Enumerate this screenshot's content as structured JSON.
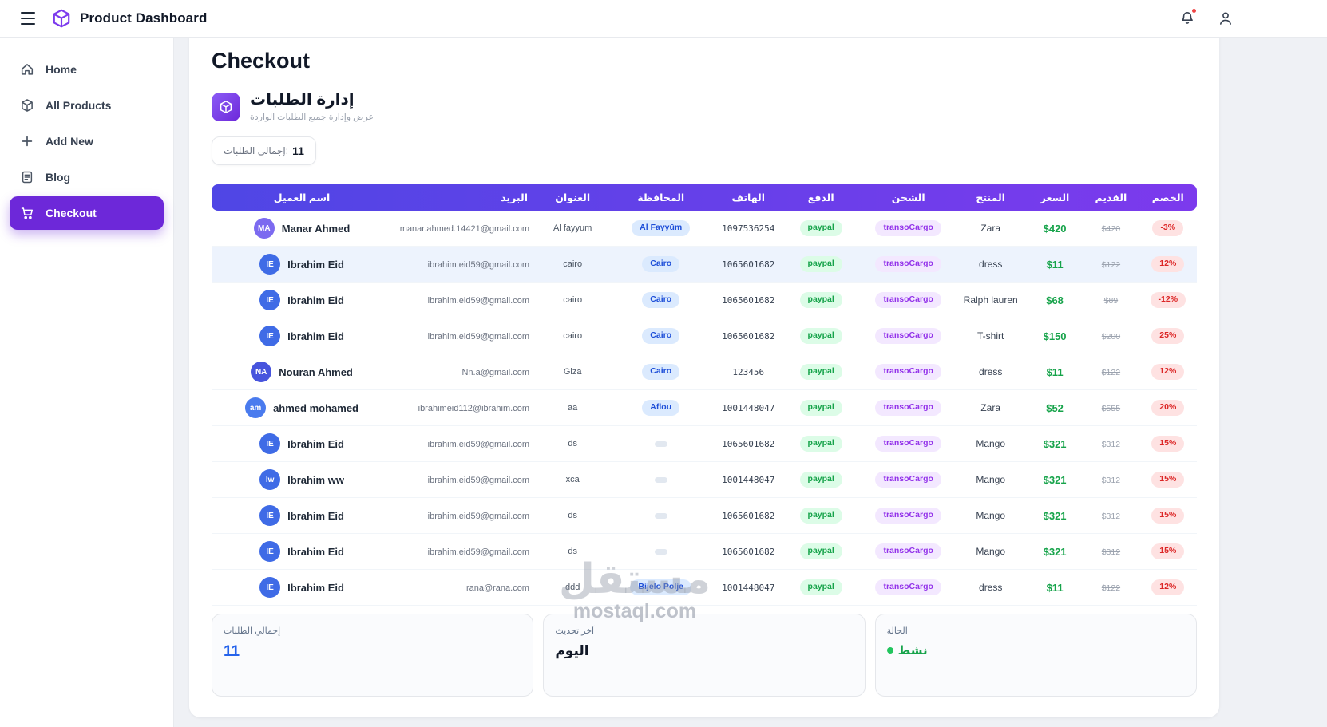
{
  "app": {
    "title": "Product Dashboard"
  },
  "sidebar": {
    "items": [
      {
        "label": "Home",
        "icon": "home-icon",
        "active": false
      },
      {
        "label": "All Products",
        "icon": "box-icon",
        "active": false
      },
      {
        "label": "Add New",
        "icon": "plus-icon",
        "active": false
      },
      {
        "label": "Blog",
        "icon": "blog-icon",
        "active": false
      },
      {
        "label": "Checkout",
        "icon": "cart-icon",
        "active": true
      }
    ]
  },
  "main": {
    "page_title": "Checkout",
    "orders_header": {
      "title": "إدارة الطلبات",
      "subtitle": "عرض وإدارة جميع الطلبات الواردة"
    },
    "total_pill": {
      "label": "إجمالي الطلبات:",
      "value": "11"
    },
    "table": {
      "columns": [
        "اسم العميل",
        "البريد",
        "العنوان",
        "المحافظة",
        "الهاتف",
        "الدفع",
        "الشحن",
        "المنتج",
        "السعر",
        "القديم",
        "الخصم"
      ],
      "rows": [
        {
          "initials": "MA",
          "avatar_color": "#7c6af0",
          "name": "Manar Ahmed",
          "email": "manar.ahmed.14421@gmail.com",
          "address": "Al fayyum",
          "governorate": "Al Fayyūm",
          "phone": "1097536254",
          "payment": "paypal",
          "shipping": "transoCargo",
          "product": "Zara",
          "price": "$420",
          "old_price": "$420",
          "discount": "-3%",
          "highlight": false
        },
        {
          "initials": "IE",
          "avatar_color": "#3f6be6",
          "name": "Ibrahim Eid",
          "email": "ibrahim.eid59@gmail.com",
          "address": "cairo",
          "governorate": "Cairo",
          "phone": "1065601682",
          "payment": "paypal",
          "shipping": "transoCargo",
          "product": "dress",
          "price": "$11",
          "old_price": "$122",
          "discount": "12%",
          "highlight": true
        },
        {
          "initials": "IE",
          "avatar_color": "#3f6be6",
          "name": "Ibrahim Eid",
          "email": "ibrahim.eid59@gmail.com",
          "address": "cairo",
          "governorate": "Cairo",
          "phone": "1065601682",
          "payment": "paypal",
          "shipping": "transoCargo",
          "product": "Ralph lauren",
          "price": "$68",
          "old_price": "$89",
          "discount": "-12%",
          "highlight": false
        },
        {
          "initials": "IE",
          "avatar_color": "#3f6be6",
          "name": "Ibrahim Eid",
          "email": "ibrahim.eid59@gmail.com",
          "address": "cairo",
          "governorate": "Cairo",
          "phone": "1065601682",
          "payment": "paypal",
          "shipping": "transoCargo",
          "product": "T-shirt",
          "price": "$150",
          "old_price": "$200",
          "discount": "25%",
          "highlight": false
        },
        {
          "initials": "NA",
          "avatar_color": "#4754dd",
          "name": "Nouran Ahmed",
          "email": "Nn.a@gmail.com",
          "address": "Giza",
          "governorate": "Cairo",
          "phone": "123456",
          "payment": "paypal",
          "shipping": "transoCargo",
          "product": "dress",
          "price": "$11",
          "old_price": "$122",
          "discount": "12%",
          "highlight": false
        },
        {
          "initials": "am",
          "avatar_color": "#4a7bee",
          "name": "ahmed mohamed",
          "email": "ibrahimeid112@ibrahim.com",
          "address": "aa",
          "governorate": "Aflou",
          "phone": "1001448047",
          "payment": "paypal",
          "shipping": "transoCargo",
          "product": "Zara",
          "price": "$52",
          "old_price": "$555",
          "discount": "20%",
          "highlight": false
        },
        {
          "initials": "IE",
          "avatar_color": "#3f6be6",
          "name": "Ibrahim Eid",
          "email": "ibrahim.eid59@gmail.com",
          "address": "ds",
          "governorate": "",
          "phone": "1065601682",
          "payment": "paypal",
          "shipping": "transoCargo",
          "product": "Mango",
          "price": "$321",
          "old_price": "$312",
          "discount": "15%",
          "highlight": false
        },
        {
          "initials": "Iw",
          "avatar_color": "#3f6be6",
          "name": "Ibrahim ww",
          "email": "ibrahim.eid59@gmail.com",
          "address": "xca",
          "governorate": "",
          "phone": "1001448047",
          "payment": "paypal",
          "shipping": "transoCargo",
          "product": "Mango",
          "price": "$321",
          "old_price": "$312",
          "discount": "15%",
          "highlight": false
        },
        {
          "initials": "IE",
          "avatar_color": "#3f6be6",
          "name": "Ibrahim Eid",
          "email": "ibrahim.eid59@gmail.com",
          "address": "ds",
          "governorate": "",
          "phone": "1065601682",
          "payment": "paypal",
          "shipping": "transoCargo",
          "product": "Mango",
          "price": "$321",
          "old_price": "$312",
          "discount": "15%",
          "highlight": false
        },
        {
          "initials": "IE",
          "avatar_color": "#3f6be6",
          "name": "Ibrahim Eid",
          "email": "ibrahim.eid59@gmail.com",
          "address": "ds",
          "governorate": "",
          "phone": "1065601682",
          "payment": "paypal",
          "shipping": "transoCargo",
          "product": "Mango",
          "price": "$321",
          "old_price": "$312",
          "discount": "15%",
          "highlight": false
        },
        {
          "initials": "IE",
          "avatar_color": "#3f6be6",
          "name": "Ibrahim Eid",
          "email": "rana@rana.com",
          "address": "ddd",
          "governorate": "Bijelo Polje",
          "phone": "1001448047",
          "payment": "paypal",
          "shipping": "transoCargo",
          "product": "dress",
          "price": "$11",
          "old_price": "$122",
          "discount": "12%",
          "highlight": false
        }
      ]
    },
    "summary_cards": [
      {
        "label": "إجمالي الطلبات",
        "value": "11"
      },
      {
        "label": "آخر تحديث",
        "value": "اليوم"
      },
      {
        "label": "الحالة",
        "value": "نشط"
      }
    ],
    "watermark": {
      "ar": "مستقل",
      "en": "mostaql.com"
    }
  },
  "colors": {
    "accent": "#6d28d9",
    "table_header_gradient": [
      "#4f46e5",
      "#7c3aed"
    ],
    "price_green": "#16a34a",
    "discount_red": "#dc2626",
    "governorate_blue": "#1d4ed8",
    "shipping_purple": "#9333ea",
    "notification_red": "#ef4444",
    "summary_count_blue": "#2563eb",
    "status_green": "#22c55e"
  }
}
